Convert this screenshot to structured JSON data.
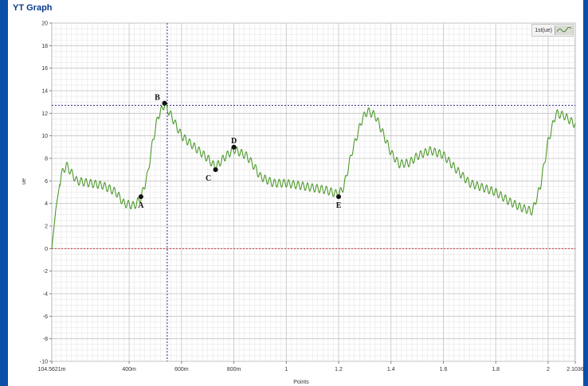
{
  "window": {
    "title": "YT Graph"
  },
  "chart_data": {
    "type": "line",
    "title": "",
    "xlabel": "Points",
    "ylabel": "ue",
    "xlim": [
      0.1045621,
      2.1036
    ],
    "ylim": [
      -10,
      20
    ],
    "y_ticks": [
      -10,
      -8,
      -6,
      -4,
      -2,
      0,
      2,
      4,
      6,
      8,
      10,
      12,
      14,
      16,
      18,
      20
    ],
    "x_ticks": [
      {
        "value": 0.1045621,
        "label": "104.5621m"
      },
      {
        "value": 0.4,
        "label": "400m"
      },
      {
        "value": 0.6,
        "label": "600m"
      },
      {
        "value": 0.8,
        "label": "800m"
      },
      {
        "value": 1.0,
        "label": "1"
      },
      {
        "value": 1.2,
        "label": "1.2"
      },
      {
        "value": 1.4,
        "label": "1.4"
      },
      {
        "value": 1.6,
        "label": "1.6"
      },
      {
        "value": 1.8,
        "label": "1.8"
      },
      {
        "value": 2.0,
        "label": "2"
      },
      {
        "value": 2.1036,
        "label": "2.1036"
      }
    ],
    "grid": true,
    "legend": "top-right",
    "series": [
      {
        "name": "1st(ue)",
        "color": "#4f9a2c",
        "ripple_amplitude": 0.35,
        "ripple_period": 0.018,
        "points": [
          [
            0.1046,
            0.0
          ],
          [
            0.12,
            3.5
          ],
          [
            0.14,
            6.5
          ],
          [
            0.16,
            7.4
          ],
          [
            0.18,
            6.7
          ],
          [
            0.2,
            6.0
          ],
          [
            0.25,
            5.8
          ],
          [
            0.3,
            5.6
          ],
          [
            0.35,
            5.0
          ],
          [
            0.38,
            4.0
          ],
          [
            0.42,
            3.8
          ],
          [
            0.445,
            4.5
          ],
          [
            0.47,
            6.5
          ],
          [
            0.49,
            9.5
          ],
          [
            0.51,
            11.7
          ],
          [
            0.535,
            12.8
          ],
          [
            0.56,
            11.8
          ],
          [
            0.6,
            10.0
          ],
          [
            0.65,
            9.0
          ],
          [
            0.7,
            8.0
          ],
          [
            0.73,
            7.2
          ],
          [
            0.76,
            8.0
          ],
          [
            0.8,
            8.8
          ],
          [
            0.85,
            8.2
          ],
          [
            0.88,
            7.2
          ],
          [
            0.9,
            6.4
          ],
          [
            0.95,
            5.8
          ],
          [
            1.0,
            5.8
          ],
          [
            1.05,
            5.6
          ],
          [
            1.1,
            5.4
          ],
          [
            1.15,
            5.2
          ],
          [
            1.2,
            4.8
          ],
          [
            1.22,
            5.5
          ],
          [
            1.25,
            8.5
          ],
          [
            1.29,
            11.5
          ],
          [
            1.31,
            12.2
          ],
          [
            1.34,
            11.8
          ],
          [
            1.37,
            10.2
          ],
          [
            1.4,
            8.5
          ],
          [
            1.43,
            7.5
          ],
          [
            1.47,
            7.6
          ],
          [
            1.5,
            8.2
          ],
          [
            1.55,
            8.7
          ],
          [
            1.6,
            8.3
          ],
          [
            1.65,
            7.0
          ],
          [
            1.7,
            5.8
          ],
          [
            1.75,
            5.4
          ],
          [
            1.8,
            5.0
          ],
          [
            1.85,
            4.2
          ],
          [
            1.9,
            3.6
          ],
          [
            1.94,
            3.3
          ],
          [
            1.97,
            5.5
          ],
          [
            2.0,
            9.5
          ],
          [
            2.03,
            12.0
          ],
          [
            2.06,
            11.8
          ],
          [
            2.1036,
            11.0
          ]
        ]
      }
    ],
    "cursors": {
      "x": 0.5456,
      "y": 12.7,
      "color": "#2b2b8a"
    },
    "zero_line": {
      "y": 0,
      "color": "#d23a3a"
    },
    "annotations": [
      {
        "label": "A",
        "x": 0.445,
        "y": 4.6
      },
      {
        "label": "B",
        "x": 0.535,
        "y": 12.9
      },
      {
        "label": "C",
        "x": 0.73,
        "y": 7.0
      },
      {
        "label": "D",
        "x": 0.8,
        "y": 9.0
      },
      {
        "label": "E",
        "x": 1.2,
        "y": 4.6
      }
    ]
  }
}
